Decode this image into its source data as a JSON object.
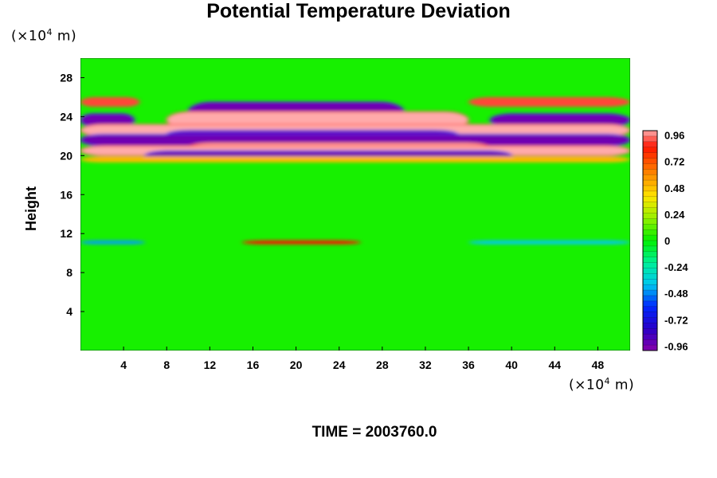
{
  "chart_data": {
    "type": "heatmap",
    "title": "Potential Temperature Deviation",
    "ylabel": "Height",
    "x_unit_prefix": "(×10",
    "x_unit_exp": "4",
    "x_unit_suffix": " m)",
    "y_unit_prefix": "(×10",
    "y_unit_exp": "4",
    "y_unit_suffix": " m)",
    "xlim": [
      0,
      51
    ],
    "ylim": [
      0,
      30
    ],
    "x_ticks": [
      4,
      8,
      12,
      16,
      20,
      24,
      28,
      32,
      36,
      40,
      44,
      48
    ],
    "y_ticks": [
      4,
      8,
      12,
      16,
      20,
      24,
      28
    ],
    "colorbar": {
      "range": [
        -1.0,
        1.0
      ],
      "labels": [
        "0.96",
        "0.72",
        "0.48",
        "0.24",
        "0",
        "-0.24",
        "-0.48",
        "-0.72",
        "-0.96"
      ],
      "label_values": [
        0.96,
        0.72,
        0.48,
        0.24,
        0,
        -0.24,
        -0.48,
        -0.72,
        -0.96
      ]
    },
    "bands": [
      {
        "y": [
          25.0,
          26.0
        ],
        "x": [
          0,
          5.5
        ],
        "value": 0.9
      },
      {
        "y": [
          23.5,
          25.5
        ],
        "x": [
          10,
          30
        ],
        "value": -0.95
      },
      {
        "y": [
          25.0,
          26.0
        ],
        "x": [
          36,
          51
        ],
        "value": 0.9
      },
      {
        "y": [
          23.0,
          24.3
        ],
        "x": [
          0,
          5
        ],
        "value": -0.95
      },
      {
        "y": [
          22.8,
          24.5
        ],
        "x": [
          8,
          36
        ],
        "value": 1.0
      },
      {
        "y": [
          23.0,
          24.3
        ],
        "x": [
          38,
          51
        ],
        "value": -0.95
      },
      {
        "y": [
          22.0,
          23.2
        ],
        "x": [
          0,
          51
        ],
        "value": 1.0
      },
      {
        "y": [
          21.8,
          22.6
        ],
        "x": [
          8,
          35
        ],
        "value": -0.95
      },
      {
        "y": [
          21.0,
          22.2
        ],
        "x": [
          0,
          51
        ],
        "value": -0.95
      },
      {
        "y": [
          20.4,
          21.3
        ],
        "x": [
          10,
          38
        ],
        "value": 1.0
      },
      {
        "y": [
          20.0,
          21.0
        ],
        "x": [
          0,
          51
        ],
        "value": 1.0
      },
      {
        "y": [
          19.5,
          20.5
        ],
        "x": [
          6,
          40
        ],
        "value": -0.95
      },
      {
        "y": [
          19.3,
          19.9
        ],
        "x": [
          0,
          51
        ],
        "value": 0.5
      },
      {
        "y": [
          10.9,
          11.3
        ],
        "x": [
          15,
          26
        ],
        "value": 0.85
      },
      {
        "y": [
          10.9,
          11.3
        ],
        "x": [
          0,
          6
        ],
        "value": -0.45
      },
      {
        "y": [
          10.9,
          11.3
        ],
        "x": [
          36,
          51
        ],
        "value": -0.4
      }
    ],
    "time_label": "TIME = 2003760.0"
  }
}
